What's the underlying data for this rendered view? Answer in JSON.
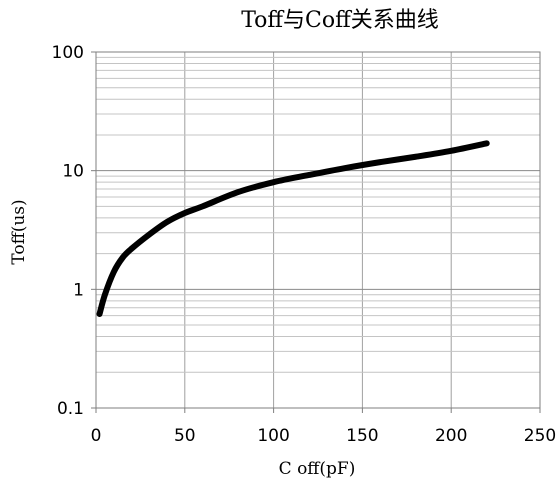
{
  "chart_data": {
    "type": "line",
    "title": "Toff与Coff关系曲线",
    "xlabel": "C off(pF)",
    "ylabel": "Toff(us)",
    "xlim": [
      0,
      250
    ],
    "ylim": [
      0.1,
      100
    ],
    "y_scale": "log",
    "grid": true,
    "x_ticks": [
      "0",
      "50",
      "100",
      "150",
      "200",
      "250"
    ],
    "y_ticks": [
      "0.1",
      "1",
      "10",
      "100"
    ],
    "series": [
      {
        "x": [
          2,
          5,
          10,
          15,
          20,
          30,
          40,
          50,
          60,
          80,
          100,
          120,
          140,
          160,
          180,
          200,
          220
        ],
        "y": [
          0.62,
          0.9,
          1.4,
          1.85,
          2.2,
          2.9,
          3.7,
          4.4,
          5.0,
          6.6,
          8.0,
          9.2,
          10.5,
          11.8,
          13.1,
          14.7,
          17.0
        ],
        "color": "#000000"
      }
    ]
  }
}
